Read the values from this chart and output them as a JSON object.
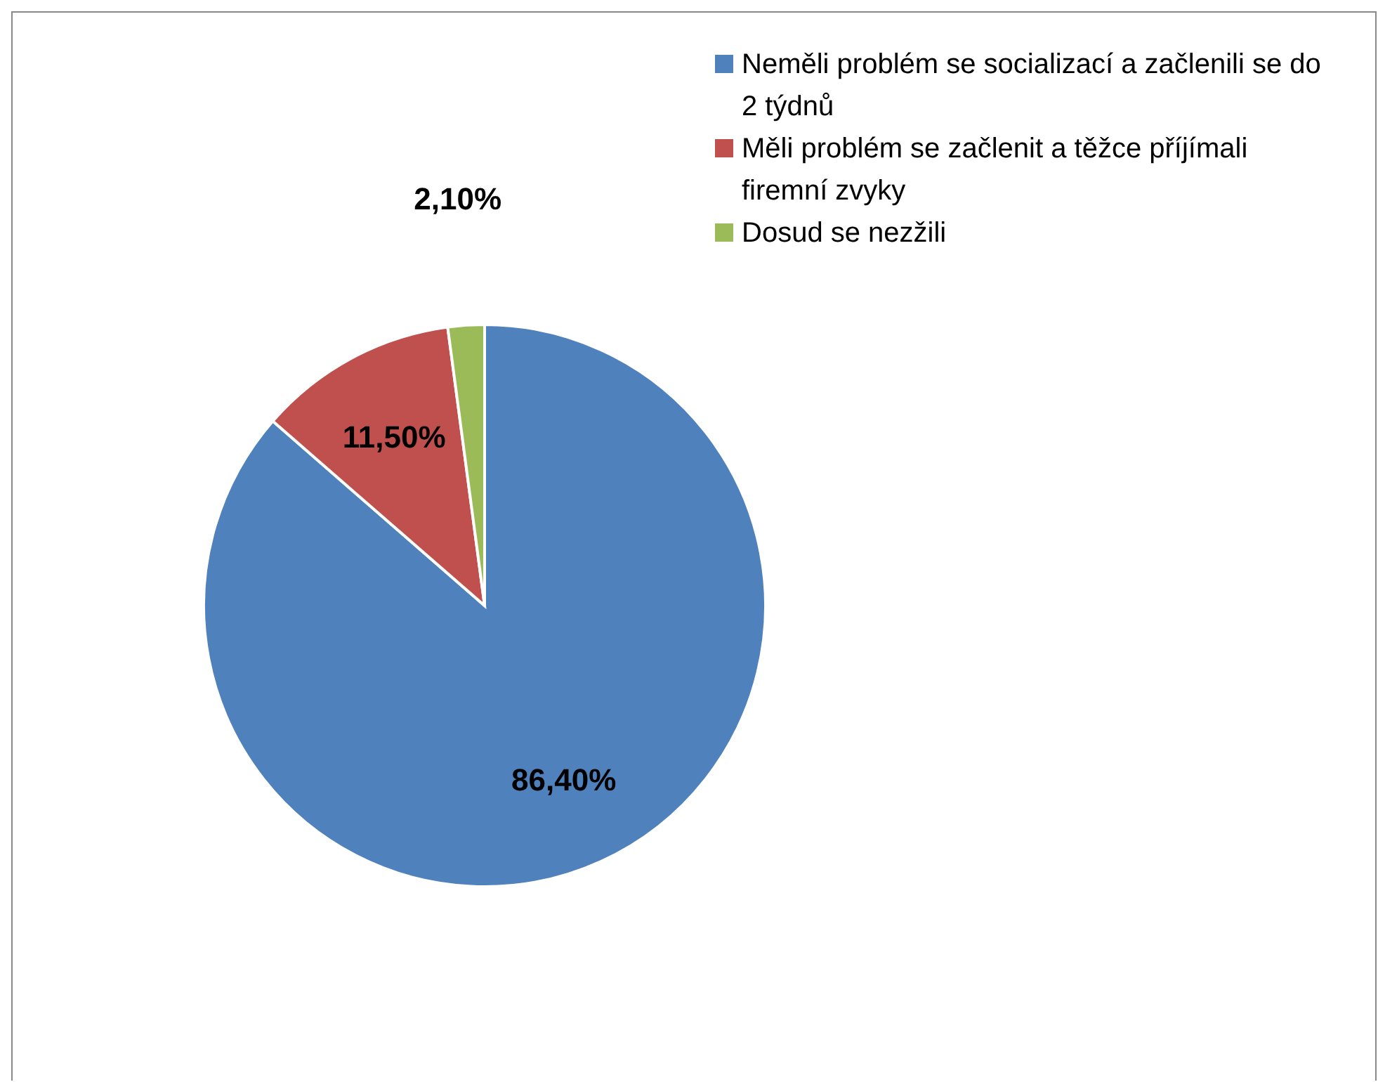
{
  "chart_data": {
    "type": "pie",
    "categories": [
      "Neměli problém se socializací a začlenili se do 2 týdnů",
      "Měli problém se začlenit a těžce příjímali firemní zvyky",
      "Dosud se nezžili"
    ],
    "values": [
      86.4,
      11.5,
      2.1
    ],
    "colors": [
      "#4f81bd",
      "#c0504d",
      "#9bbb59"
    ],
    "value_labels": [
      "86,40%",
      "11,50%",
      "2,10%"
    ],
    "legend": "top right"
  }
}
